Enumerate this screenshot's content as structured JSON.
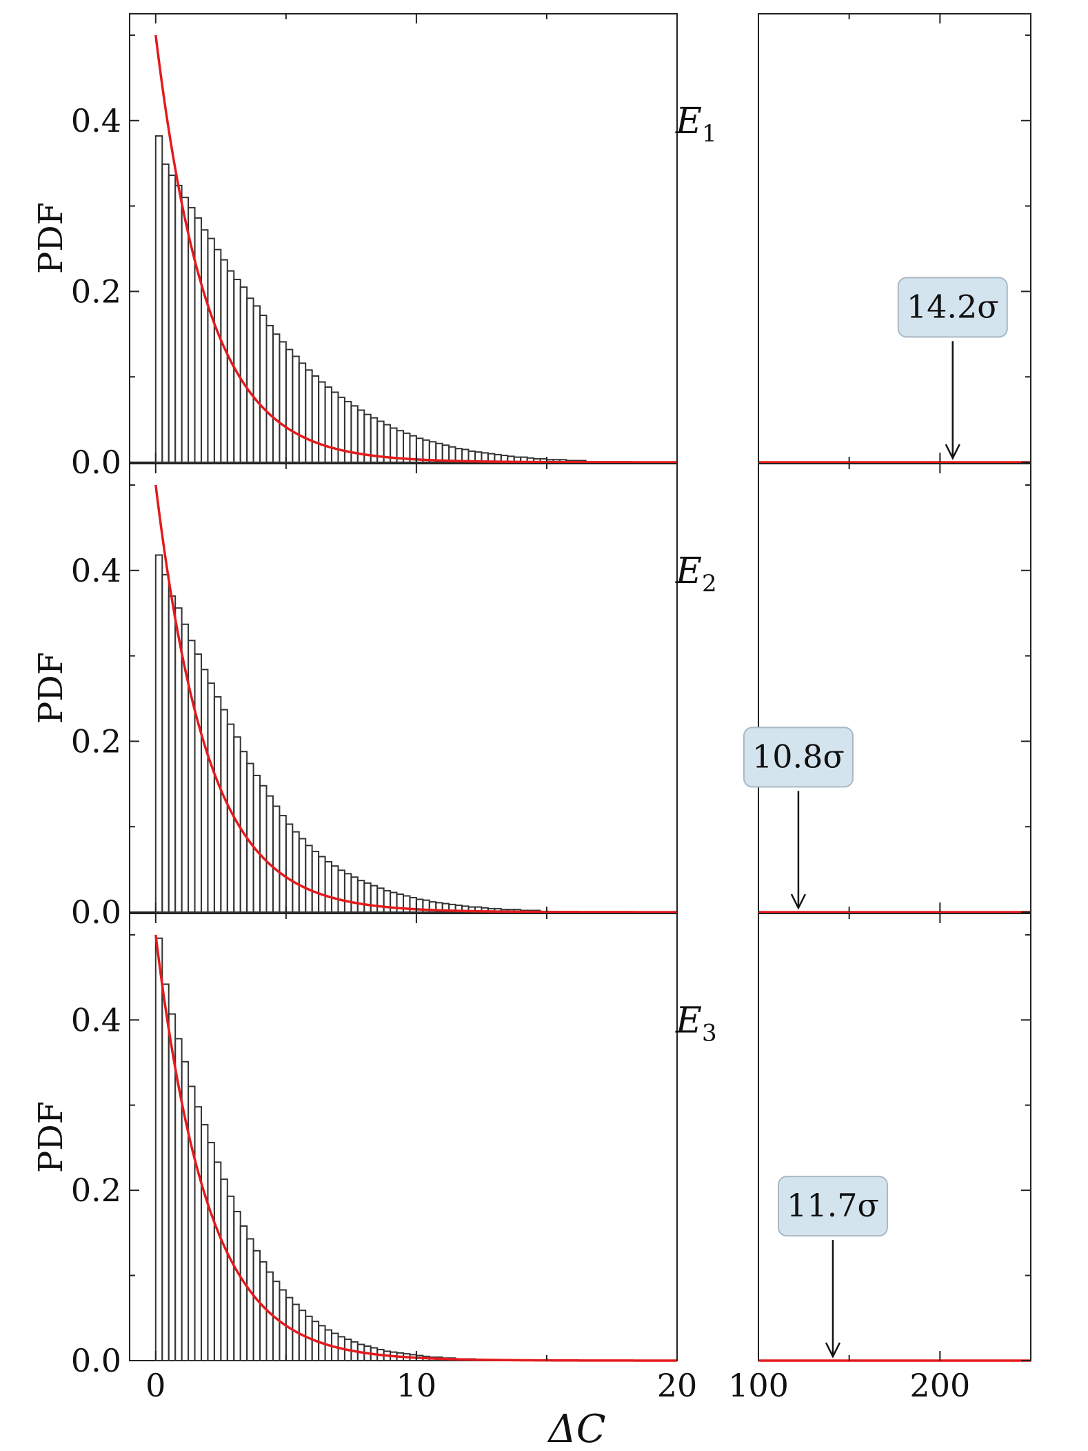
{
  "figure": {
    "xlabel": "ΔC",
    "ylabel": "PDF"
  },
  "chart_data": [
    {
      "type": "bar",
      "panel_label": "E1",
      "ylabel": "PDF",
      "xlim_left": [
        -1,
        20
      ],
      "xlim_right": [
        100,
        250
      ],
      "ylim": [
        0,
        0.525
      ],
      "xticks_left": [
        "0",
        "10",
        "20"
      ],
      "xticks_right": [
        "100",
        "200"
      ],
      "yticks": [
        "0.0",
        "0.2",
        "0.4"
      ],
      "bin_width": 0.25,
      "histogram": [
        0.382,
        0.349,
        0.336,
        0.324,
        0.31,
        0.298,
        0.286,
        0.272,
        0.262,
        0.249,
        0.237,
        0.224,
        0.214,
        0.205,
        0.192,
        0.183,
        0.172,
        0.16,
        0.15,
        0.141,
        0.132,
        0.124,
        0.116,
        0.108,
        0.101,
        0.094,
        0.088,
        0.082,
        0.076,
        0.071,
        0.066,
        0.061,
        0.056,
        0.052,
        0.048,
        0.044,
        0.04,
        0.037,
        0.034,
        0.031,
        0.028,
        0.026,
        0.024,
        0.022,
        0.02,
        0.018,
        0.016,
        0.015,
        0.013,
        0.012,
        0.011,
        0.01,
        0.009,
        0.008,
        0.007,
        0.006,
        0.006,
        0.005,
        0.004,
        0.004,
        0.003,
        0.003,
        0.003,
        0.002,
        0.002,
        0.002
      ],
      "fit_curve": {
        "function": "0.5*exp(-x/2)",
        "color": "#e41a1c"
      },
      "observed": {
        "label": "14.2σ",
        "x": 207
      }
    },
    {
      "type": "bar",
      "panel_label": "E2",
      "ylabel": "PDF",
      "xlim_left": [
        -1,
        20
      ],
      "xlim_right": [
        100,
        250
      ],
      "ylim": [
        0,
        0.525
      ],
      "xticks_left": [
        "0",
        "10",
        "20"
      ],
      "xticks_right": [
        "100",
        "200"
      ],
      "yticks": [
        "0.0",
        "0.2",
        "0.4"
      ],
      "bin_width": 0.25,
      "histogram": [
        0.418,
        0.395,
        0.37,
        0.356,
        0.337,
        0.318,
        0.302,
        0.284,
        0.268,
        0.252,
        0.237,
        0.22,
        0.205,
        0.188,
        0.174,
        0.16,
        0.148,
        0.136,
        0.124,
        0.113,
        0.103,
        0.094,
        0.086,
        0.078,
        0.071,
        0.065,
        0.059,
        0.054,
        0.049,
        0.045,
        0.041,
        0.037,
        0.034,
        0.031,
        0.028,
        0.025,
        0.023,
        0.021,
        0.019,
        0.017,
        0.015,
        0.014,
        0.012,
        0.011,
        0.01,
        0.009,
        0.008,
        0.007,
        0.006,
        0.006,
        0.005,
        0.004,
        0.004,
        0.003,
        0.003,
        0.003,
        0.002,
        0.002,
        0.002
      ],
      "fit_curve": {
        "function": "0.5*exp(-x/2)",
        "color": "#e41a1c"
      },
      "observed": {
        "label": "10.8σ",
        "x": 122
      }
    },
    {
      "type": "bar",
      "panel_label": "E3",
      "ylabel": "PDF",
      "xlim_left": [
        -1,
        20
      ],
      "xlim_right": [
        100,
        250
      ],
      "ylim": [
        0,
        0.525
      ],
      "xticks_left": [
        "0",
        "10",
        "20"
      ],
      "xticks_right": [
        "100",
        "200"
      ],
      "yticks": [
        "0.0",
        "0.2",
        "0.4"
      ],
      "bin_width": 0.25,
      "histogram": [
        0.496,
        0.442,
        0.407,
        0.378,
        0.351,
        0.322,
        0.298,
        0.277,
        0.256,
        0.233,
        0.213,
        0.193,
        0.175,
        0.158,
        0.143,
        0.129,
        0.116,
        0.104,
        0.093,
        0.083,
        0.074,
        0.066,
        0.059,
        0.052,
        0.046,
        0.041,
        0.036,
        0.032,
        0.028,
        0.025,
        0.022,
        0.019,
        0.017,
        0.015,
        0.013,
        0.011,
        0.01,
        0.009,
        0.008,
        0.007,
        0.006,
        0.005,
        0.004,
        0.004,
        0.003,
        0.003,
        0.002,
        0.002,
        0.002,
        0.001
      ],
      "fit_curve": {
        "function": "0.5*exp(-x/2)",
        "color": "#e41a1c"
      },
      "observed": {
        "label": "11.7σ",
        "x": 141
      }
    }
  ]
}
